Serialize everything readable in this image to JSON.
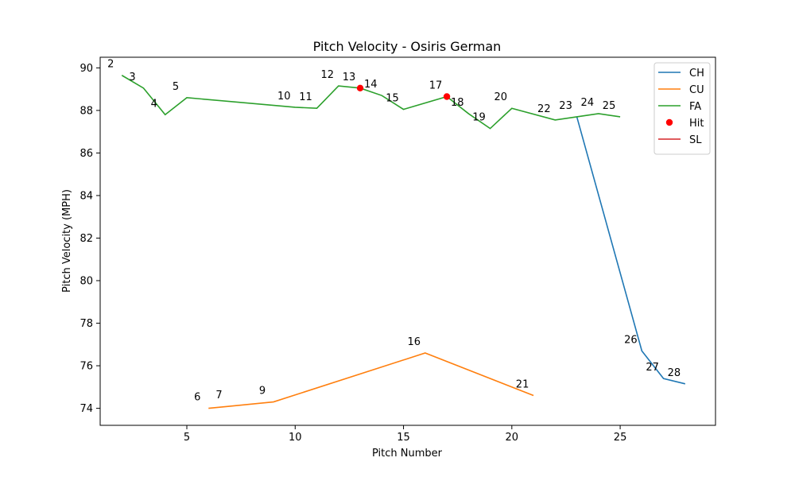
{
  "chart_data": {
    "type": "line",
    "title": "Pitch Velocity - Osiris German",
    "xlabel": "Pitch Number",
    "ylabel": "Pitch Velocity (MPH)",
    "xlim": [
      1,
      29.4
    ],
    "ylim": [
      73.2,
      90.5
    ],
    "xticks": [
      5,
      10,
      15,
      20,
      25
    ],
    "yticks": [
      74,
      76,
      78,
      80,
      82,
      84,
      86,
      88,
      90
    ],
    "grid": false,
    "legend_position": "top-right",
    "series": [
      {
        "name": "CH",
        "kind": "line",
        "color": "#1f77b4",
        "x": [
          23,
          26,
          27,
          28
        ],
        "y": [
          87.7,
          76.7,
          75.4,
          75.15
        ]
      },
      {
        "name": "CU",
        "kind": "line",
        "color": "#ff7f0e",
        "x": [
          6,
          7,
          9,
          16,
          21
        ],
        "y": [
          74.0,
          74.1,
          74.3,
          76.6,
          74.6
        ]
      },
      {
        "name": "FA",
        "kind": "line",
        "color": "#2ca02c",
        "x": [
          2,
          3,
          4,
          5,
          10,
          11,
          12,
          13,
          14,
          15,
          17,
          18,
          19,
          20,
          22,
          23,
          24,
          25
        ],
        "y": [
          89.65,
          89.05,
          87.8,
          88.6,
          88.15,
          88.1,
          89.15,
          89.05,
          88.7,
          88.05,
          88.65,
          87.85,
          87.15,
          88.1,
          87.55,
          87.7,
          87.85,
          87.7
        ]
      },
      {
        "name": "Hit",
        "kind": "scatter",
        "color": "#ff0000",
        "x": [
          13,
          17
        ],
        "y": [
          89.05,
          88.65
        ]
      },
      {
        "name": "SL",
        "kind": "line",
        "color": "#d62728",
        "x": [],
        "y": []
      }
    ],
    "annotations": [
      {
        "text": "2",
        "x": 2,
        "y": 89.65
      },
      {
        "text": "3",
        "x": 3,
        "y": 89.05
      },
      {
        "text": "4",
        "x": 4,
        "y": 87.8
      },
      {
        "text": "5",
        "x": 5,
        "y": 88.6
      },
      {
        "text": "6",
        "x": 6,
        "y": 74.0
      },
      {
        "text": "7",
        "x": 7,
        "y": 74.1
      },
      {
        "text": "9",
        "x": 9,
        "y": 74.3
      },
      {
        "text": "10",
        "x": 10,
        "y": 88.15
      },
      {
        "text": "11",
        "x": 11,
        "y": 88.1
      },
      {
        "text": "12",
        "x": 12,
        "y": 89.15
      },
      {
        "text": "13",
        "x": 13,
        "y": 89.05
      },
      {
        "text": "14",
        "x": 14,
        "y": 88.7
      },
      {
        "text": "15",
        "x": 15,
        "y": 88.05
      },
      {
        "text": "16",
        "x": 16,
        "y": 76.6
      },
      {
        "text": "17",
        "x": 17,
        "y": 88.65
      },
      {
        "text": "18",
        "x": 18,
        "y": 87.85
      },
      {
        "text": "19",
        "x": 19,
        "y": 87.15
      },
      {
        "text": "20",
        "x": 20,
        "y": 88.1
      },
      {
        "text": "21",
        "x": 21,
        "y": 74.6
      },
      {
        "text": "22",
        "x": 22,
        "y": 87.55
      },
      {
        "text": "23",
        "x": 23,
        "y": 87.7
      },
      {
        "text": "24",
        "x": 24,
        "y": 87.85
      },
      {
        "text": "25",
        "x": 25,
        "y": 87.7
      },
      {
        "text": "26",
        "x": 26,
        "y": 76.7
      },
      {
        "text": "27",
        "x": 27,
        "y": 75.4
      },
      {
        "text": "28",
        "x": 28,
        "y": 75.15
      }
    ]
  }
}
